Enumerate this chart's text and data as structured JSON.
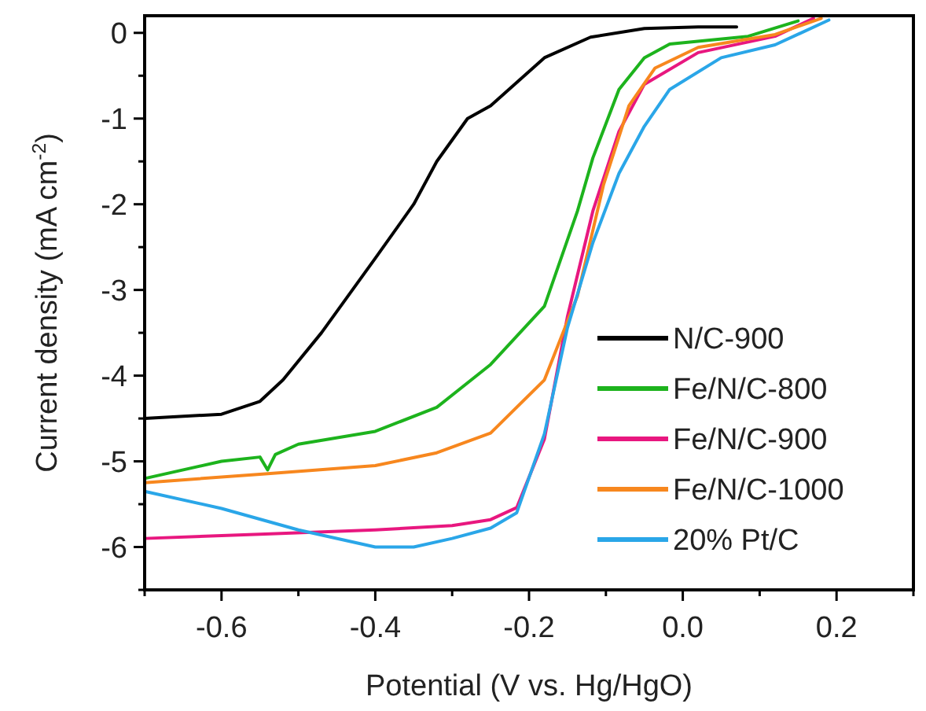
{
  "chart_data": {
    "type": "line",
    "xlabel": "Potential (V vs. Hg/HgO)",
    "ylabel": "Current density (mA cm$^{-2}$)",
    "xlim": [
      -0.7,
      0.3
    ],
    "ylim": [
      -6.5,
      0.2
    ],
    "xticks": [
      {
        "value": -0.7,
        "label": null
      },
      -0.6,
      {
        "value": -0.5,
        "label": null
      },
      -0.4,
      {
        "value": -0.3,
        "label": null
      },
      -0.2,
      {
        "value": -0.1,
        "label": null
      },
      {
        "value": 0,
        "label": "0.0"
      },
      {
        "value": 0.1,
        "label": null
      },
      0.2,
      {
        "value": 0.3,
        "label": null
      }
    ],
    "yticks": [
      {
        "value": -6.5,
        "label": null
      },
      -6,
      {
        "value": -5.5,
        "label": null
      },
      -5,
      {
        "value": -4.5,
        "label": null
      },
      -4,
      {
        "value": -3.5,
        "label": null
      },
      -3,
      {
        "value": -2.5,
        "label": null
      },
      -2,
      {
        "value": -1.5,
        "label": null
      },
      -1,
      {
        "value": -0.5,
        "label": null
      },
      0
    ],
    "legend": "bottom right",
    "grid": false,
    "line_style": "solid",
    "marker": "none",
    "series": [
      {
        "name": "N/C-900",
        "color": "#000000",
        "x": [
          -0.7,
          -0.6,
          -0.55,
          -0.52,
          -0.47,
          -0.4,
          -0.35,
          -0.32,
          -0.28,
          -0.25,
          -0.18,
          -0.12,
          -0.05,
          0.02,
          0.07
        ],
        "values": [
          -4.5,
          -4.45,
          -4.3,
          -4.05,
          -3.5,
          -2.63,
          -2.0,
          -1.5,
          -1.0,
          -0.85,
          -0.29,
          -0.05,
          0.05,
          0.07,
          0.07
        ]
      },
      {
        "name": "Fe/N/C-800",
        "color": "#1db31d",
        "x": [
          -0.7,
          -0.6,
          -0.55,
          -0.54,
          -0.53,
          -0.5,
          -0.4,
          -0.32,
          -0.25,
          -0.18,
          -0.137,
          -0.117,
          -0.083,
          -0.05,
          -0.017,
          0.085,
          0.15
        ],
        "values": [
          -5.2,
          -5.0,
          -4.95,
          -5.1,
          -4.92,
          -4.8,
          -4.65,
          -4.37,
          -3.87,
          -3.19,
          -2.08,
          -1.46,
          -0.66,
          -0.29,
          -0.13,
          -0.04,
          0.14
        ]
      },
      {
        "name": "Fe/N/C-900",
        "color": "#e8177f",
        "x": [
          -0.7,
          -0.55,
          -0.4,
          -0.3,
          -0.25,
          -0.216,
          -0.18,
          -0.15,
          -0.117,
          -0.083,
          -0.05,
          0.02,
          0.12,
          0.17
        ],
        "values": [
          -5.9,
          -5.85,
          -5.8,
          -5.75,
          -5.68,
          -5.54,
          -4.74,
          -3.31,
          -2.08,
          -1.15,
          -0.6,
          -0.23,
          -0.04,
          0.17
        ]
      },
      {
        "name": "Fe/N/C-1000",
        "color": "#f7871e",
        "x": [
          -0.7,
          -0.55,
          -0.4,
          -0.32,
          -0.25,
          -0.18,
          -0.137,
          -0.103,
          -0.07,
          -0.036,
          0.02,
          0.12,
          0.18
        ],
        "values": [
          -5.25,
          -5.15,
          -5.05,
          -4.9,
          -4.67,
          -4.05,
          -3.07,
          -1.77,
          -0.85,
          -0.41,
          -0.17,
          -0.02,
          0.17
        ]
      },
      {
        "name": "20% Pt/C",
        "color": "#2aa6e8",
        "x": [
          -0.7,
          -0.6,
          -0.5,
          -0.4,
          -0.35,
          -0.3,
          -0.25,
          -0.216,
          -0.18,
          -0.15,
          -0.117,
          -0.083,
          -0.05,
          -0.017,
          0.05,
          0.12,
          0.19
        ],
        "values": [
          -5.35,
          -5.55,
          -5.8,
          -6.0,
          -6.0,
          -5.9,
          -5.78,
          -5.6,
          -4.68,
          -3.44,
          -2.45,
          -1.64,
          -1.09,
          -0.66,
          -0.29,
          -0.14,
          0.15
        ]
      }
    ]
  }
}
